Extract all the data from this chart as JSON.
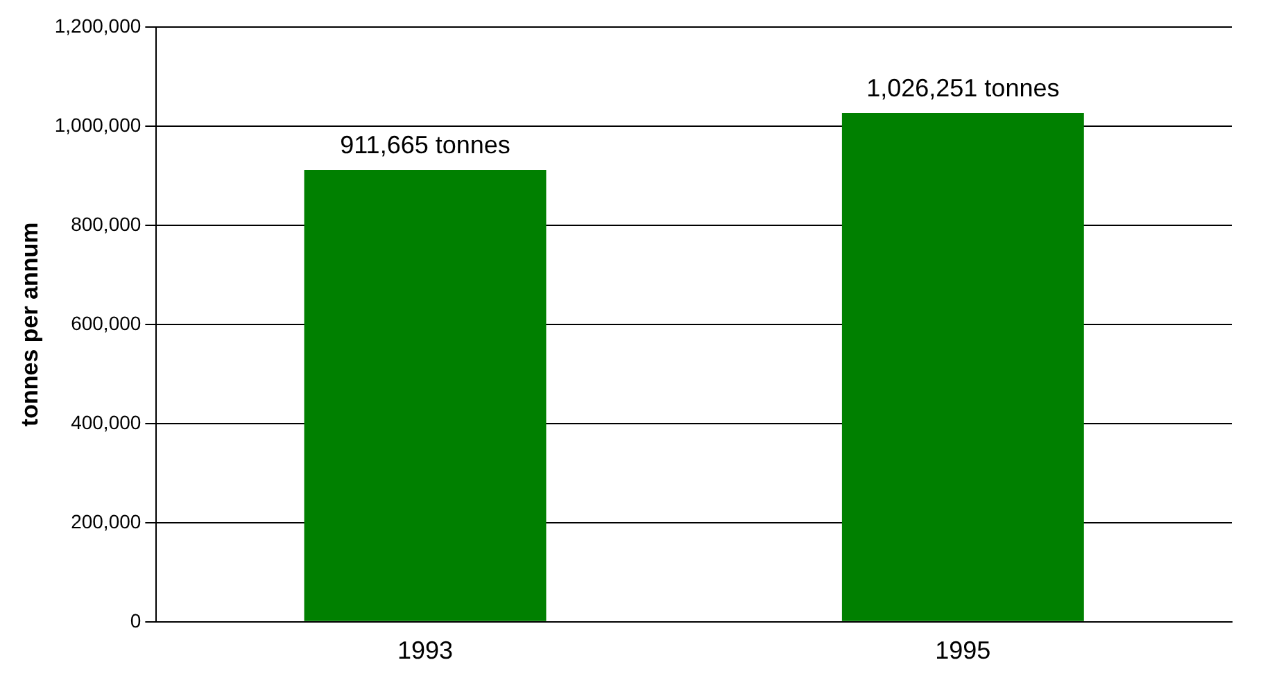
{
  "chart_data": {
    "type": "bar",
    "ylabel": "tonnes per annum",
    "categories": [
      "1993",
      "1995"
    ],
    "values": [
      911665,
      1026251
    ],
    "value_labels": [
      "911,665 tonnes",
      "1,026,251 tonnes"
    ],
    "color": "#008000",
    "ylim": [
      0,
      1200000
    ],
    "yticks": [
      {
        "value": 0,
        "label": "0"
      },
      {
        "value": 200000,
        "label": "200,000"
      },
      {
        "value": 400000,
        "label": "400,000"
      },
      {
        "value": 600000,
        "label": "600,000"
      },
      {
        "value": 800000,
        "label": "800,000"
      },
      {
        "value": 1000000,
        "label": "1,000,000"
      },
      {
        "value": 1200000,
        "label": "1,200,000"
      }
    ],
    "grid": "y",
    "legend": false
  }
}
